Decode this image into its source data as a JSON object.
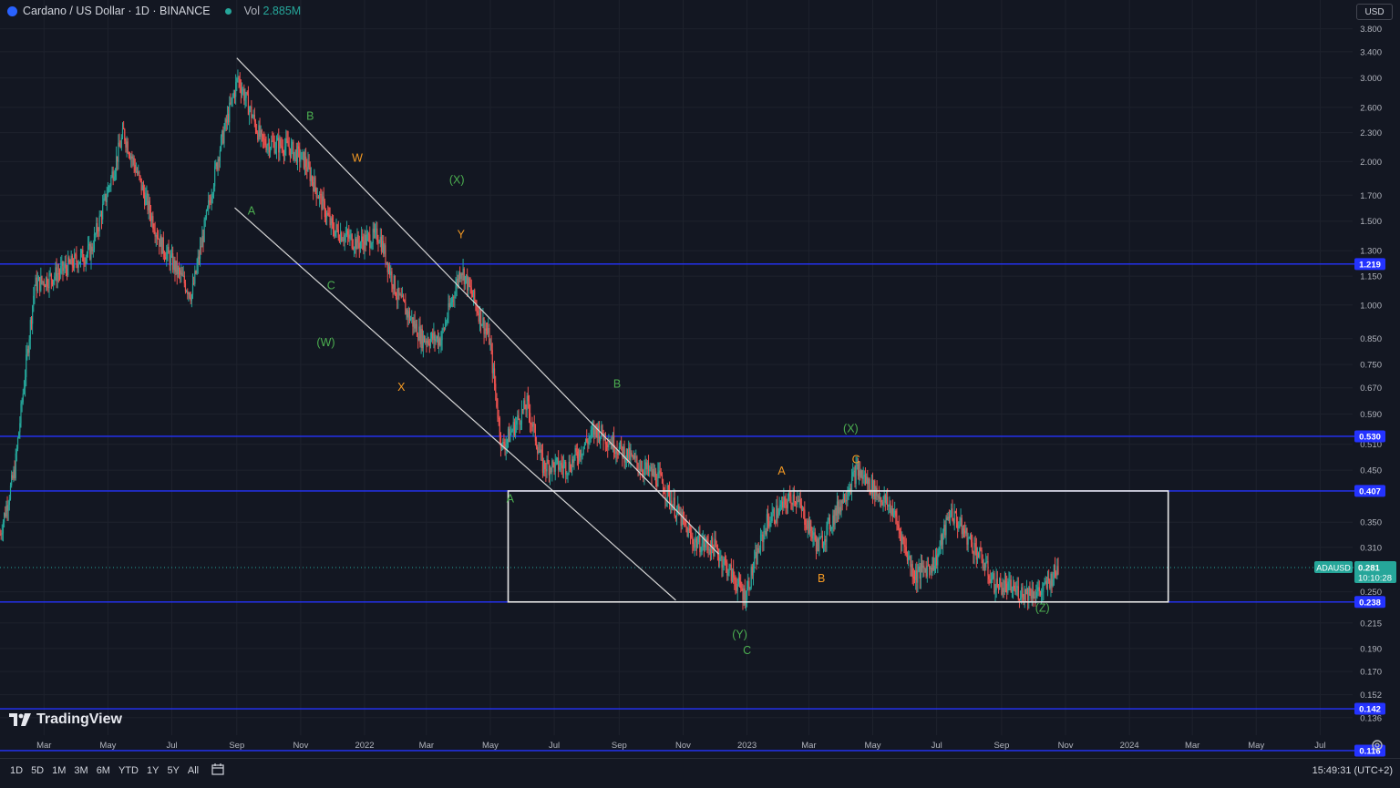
{
  "header": {
    "symbol_title": "Cardano / US Dollar · 1D · BINANCE",
    "vol_label": "Vol",
    "vol_value": "2.885M"
  },
  "currency_button": "USD",
  "range_buttons": [
    "1D",
    "5D",
    "1M",
    "3M",
    "6M",
    "YTD",
    "1Y",
    "5Y",
    "All"
  ],
  "clock": "15:49:31 (UTC+2)",
  "brand": "TradingView",
  "colors": {
    "background": "#131722",
    "up": "#26a69a",
    "down": "#ef5350",
    "level_line": "#2433ff",
    "channel": "#d6d6d6",
    "green_label": "#4caf50",
    "orange_label": "#f59a23"
  },
  "icons": {
    "calendar": "calendar-range-icon",
    "settings": "settings-icon",
    "logo": "tradingview-logo-icon"
  },
  "chart_data": {
    "type": "candlestick",
    "y_scale": "log",
    "ylim": [
      0.125,
      4.0
    ],
    "xlim": [
      "2021-01-18",
      "2024-08-01"
    ],
    "x_ticks": [
      {
        "date": "2021-03-01",
        "label": "Mar"
      },
      {
        "date": "2021-05-01",
        "label": "May"
      },
      {
        "date": "2021-07-01",
        "label": "Jul"
      },
      {
        "date": "2021-09-01",
        "label": "Sep"
      },
      {
        "date": "2021-11-01",
        "label": "Nov"
      },
      {
        "date": "2022-01-01",
        "label": "2022"
      },
      {
        "date": "2022-03-01",
        "label": "Mar"
      },
      {
        "date": "2022-05-01",
        "label": "May"
      },
      {
        "date": "2022-07-01",
        "label": "Jul"
      },
      {
        "date": "2022-09-01",
        "label": "Sep"
      },
      {
        "date": "2022-11-01",
        "label": "Nov"
      },
      {
        "date": "2023-01-01",
        "label": "2023"
      },
      {
        "date": "2023-03-01",
        "label": "Mar"
      },
      {
        "date": "2023-05-01",
        "label": "May"
      },
      {
        "date": "2023-07-01",
        "label": "Jul"
      },
      {
        "date": "2023-09-01",
        "label": "Sep"
      },
      {
        "date": "2023-11-01",
        "label": "Nov"
      },
      {
        "date": "2024-01-01",
        "label": "2024"
      },
      {
        "date": "2024-03-01",
        "label": "Mar"
      },
      {
        "date": "2024-05-01",
        "label": "May"
      },
      {
        "date": "2024-07-01",
        "label": "Jul"
      }
    ],
    "y_ticks": [
      "3.800",
      "3.400",
      "3.000",
      "2.600",
      "2.300",
      "2.000",
      "1.700",
      "1.500",
      "1.300",
      "1.150",
      "1.000",
      "0.850",
      "0.750",
      "0.670",
      "0.590",
      "0.510",
      "0.450",
      "0.350",
      "0.310",
      "0.250",
      "0.215",
      "0.190",
      "0.170",
      "0.152",
      "0.136"
    ],
    "price_path": [
      {
        "date": "2021-01-18",
        "price": 0.33
      },
      {
        "date": "2021-02-01",
        "price": 0.45
      },
      {
        "date": "2021-02-20",
        "price": 1.1
      },
      {
        "date": "2021-03-10",
        "price": 1.15
      },
      {
        "date": "2021-04-15",
        "price": 1.3
      },
      {
        "date": "2021-05-16",
        "price": 2.3
      },
      {
        "date": "2021-06-20",
        "price": 1.35
      },
      {
        "date": "2021-07-20",
        "price": 1.05
      },
      {
        "date": "2021-08-15",
        "price": 2.1
      },
      {
        "date": "2021-09-02",
        "price": 3.0
      },
      {
        "date": "2021-09-25",
        "price": 2.2
      },
      {
        "date": "2021-10-20",
        "price": 2.15
      },
      {
        "date": "2021-11-05",
        "price": 2.0
      },
      {
        "date": "2021-12-01",
        "price": 1.45
      },
      {
        "date": "2021-12-25",
        "price": 1.35
      },
      {
        "date": "2022-01-15",
        "price": 1.4
      },
      {
        "date": "2022-02-01",
        "price": 1.05
      },
      {
        "date": "2022-02-25",
        "price": 0.85
      },
      {
        "date": "2022-03-15",
        "price": 0.85
      },
      {
        "date": "2022-04-03",
        "price": 1.2
      },
      {
        "date": "2022-04-30",
        "price": 0.85
      },
      {
        "date": "2022-05-12",
        "price": 0.5
      },
      {
        "date": "2022-06-05",
        "price": 0.62
      },
      {
        "date": "2022-06-20",
        "price": 0.46
      },
      {
        "date": "2022-07-15",
        "price": 0.46
      },
      {
        "date": "2022-08-10",
        "price": 0.55
      },
      {
        "date": "2022-09-15",
        "price": 0.47
      },
      {
        "date": "2022-10-10",
        "price": 0.43
      },
      {
        "date": "2022-11-10",
        "price": 0.32
      },
      {
        "date": "2022-12-01",
        "price": 0.31
      },
      {
        "date": "2022-12-30",
        "price": 0.245
      },
      {
        "date": "2023-01-20",
        "price": 0.35
      },
      {
        "date": "2023-02-15",
        "price": 0.4
      },
      {
        "date": "2023-03-10",
        "price": 0.31
      },
      {
        "date": "2023-04-16",
        "price": 0.45
      },
      {
        "date": "2023-05-20",
        "price": 0.37
      },
      {
        "date": "2023-06-10",
        "price": 0.27
      },
      {
        "date": "2023-06-30",
        "price": 0.29
      },
      {
        "date": "2023-07-14",
        "price": 0.37
      },
      {
        "date": "2023-08-10",
        "price": 0.3
      },
      {
        "date": "2023-08-25",
        "price": 0.26
      },
      {
        "date": "2023-09-20",
        "price": 0.25
      },
      {
        "date": "2023-10-10",
        "price": 0.25
      },
      {
        "date": "2023-10-25",
        "price": 0.281
      }
    ],
    "horizontal_levels": [
      {
        "price": 1.219,
        "label": "1.219"
      },
      {
        "price": 0.53,
        "label": "0.530"
      },
      {
        "price": 0.407,
        "label": "0.407"
      },
      {
        "price": 0.238,
        "label": "0.238"
      },
      {
        "price": 0.142,
        "label": "0.142"
      },
      {
        "price": 0.116,
        "label": "0.116"
      }
    ],
    "last_price": {
      "symbol": "ADAUSD",
      "price": 0.281,
      "label": "0.281",
      "countdown": "10:10:28"
    },
    "channel_lines": [
      {
        "from": {
          "date": "2021-09-01",
          "price": 3.3
        },
        "to": {
          "date": "2022-12-05",
          "price": 0.3
        }
      },
      {
        "from": {
          "date": "2021-08-30",
          "price": 1.6
        },
        "to": {
          "date": "2022-10-25",
          "price": 0.24
        }
      }
    ],
    "range_box": {
      "from_date": "2022-05-18",
      "to_date": "2024-02-07",
      "top": 0.407,
      "bottom": 0.238
    },
    "wave_labels": [
      {
        "text": "B",
        "date": "2021-11-10",
        "price": 2.45,
        "color": "green"
      },
      {
        "text": "W",
        "date": "2021-12-25",
        "price": 2.0,
        "color": "orange"
      },
      {
        "text": "(X)",
        "date": "2022-03-30",
        "price": 1.8,
        "color": "green"
      },
      {
        "text": "A",
        "date": "2021-09-15",
        "price": 1.55,
        "color": "green"
      },
      {
        "text": "Y",
        "date": "2022-04-03",
        "price": 1.38,
        "color": "orange"
      },
      {
        "text": "C",
        "date": "2021-11-30",
        "price": 1.08,
        "color": "green"
      },
      {
        "text": "(W)",
        "date": "2021-11-25",
        "price": 0.82,
        "color": "green"
      },
      {
        "text": "X",
        "date": "2022-02-05",
        "price": 0.66,
        "color": "orange"
      },
      {
        "text": "B",
        "date": "2022-08-30",
        "price": 0.67,
        "color": "green"
      },
      {
        "text": "A",
        "date": "2022-05-20",
        "price": 0.385,
        "color": "green"
      },
      {
        "text": "(X)",
        "date": "2023-04-10",
        "price": 0.54,
        "color": "green"
      },
      {
        "text": "C",
        "date": "2023-04-15",
        "price": 0.465,
        "color": "orange"
      },
      {
        "text": "A",
        "date": "2023-02-03",
        "price": 0.44,
        "color": "orange"
      },
      {
        "text": "B",
        "date": "2023-03-13",
        "price": 0.262,
        "color": "orange"
      },
      {
        "text": "(Z)",
        "date": "2023-10-10",
        "price": 0.227,
        "color": "green"
      },
      {
        "text": "(Y)",
        "date": "2022-12-25",
        "price": 0.2,
        "color": "green"
      },
      {
        "text": "C",
        "date": "2023-01-01",
        "price": 0.185,
        "color": "green"
      }
    ]
  }
}
